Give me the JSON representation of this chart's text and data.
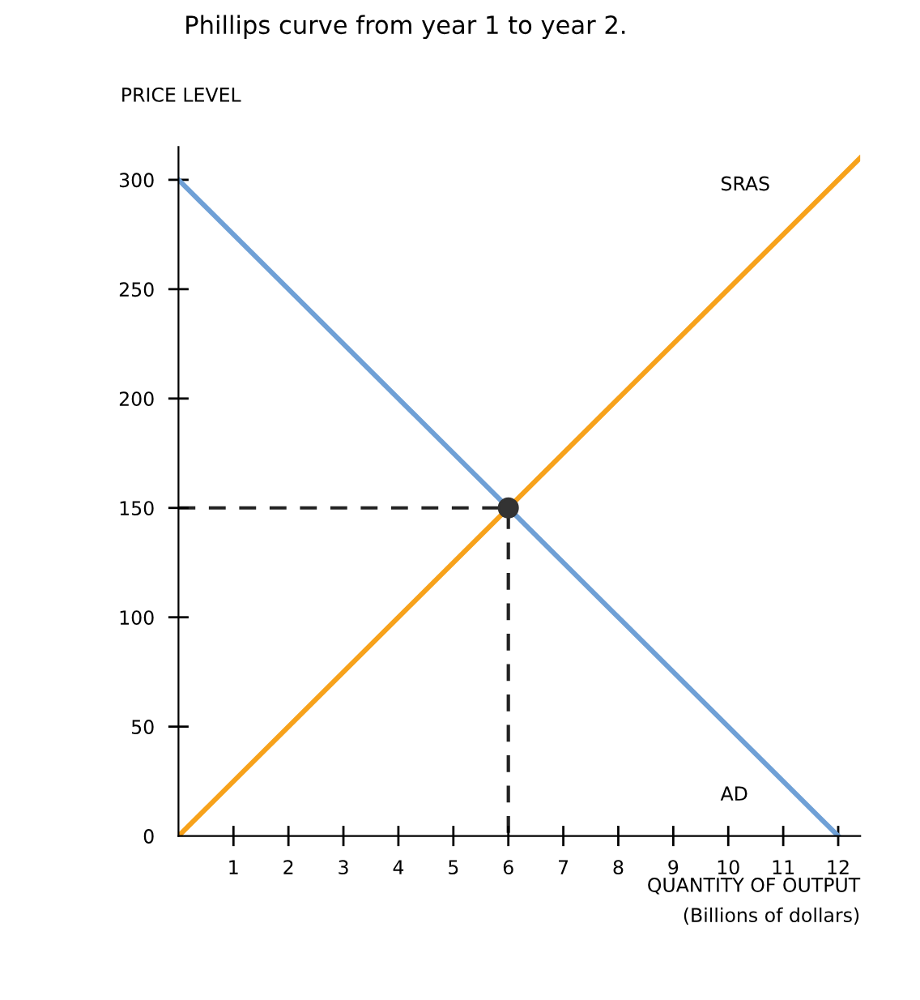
{
  "chart_data": {
    "type": "line",
    "ylabel": "PRICE LEVEL",
    "xlabel": "QUANTITY OF OUTPUT\n(Billions of dollars)",
    "xlim": [
      0,
      12.4
    ],
    "ylim": [
      0,
      315
    ],
    "xticks": [
      1,
      2,
      3,
      4,
      5,
      6,
      7,
      8,
      9,
      10,
      11,
      12
    ],
    "yticks": [
      {
        "value": 0,
        "label": "0"
      },
      50,
      100,
      150,
      200,
      250,
      300
    ],
    "grid": false,
    "legend": false,
    "series": [
      {
        "name": "AD",
        "color": "#6fa0d6",
        "x": [
          0,
          12
        ],
        "values": [
          300,
          0
        ]
      },
      {
        "name": "SRAS",
        "color": "#f7a21b",
        "x": [
          0,
          12.4
        ],
        "values": [
          0,
          310
        ]
      },
      {
        "color": "#222222",
        "x": [
          0,
          6,
          6
        ],
        "values": [
          150,
          150,
          0
        ],
        "line_style": "dashed"
      },
      {
        "type": "scatter",
        "color": "#333333",
        "x": [
          6
        ],
        "values": [
          150
        ],
        "marker": "circle"
      }
    ],
    "annotations": [
      "Phillips curve from year 1 to year 2."
    ]
  }
}
